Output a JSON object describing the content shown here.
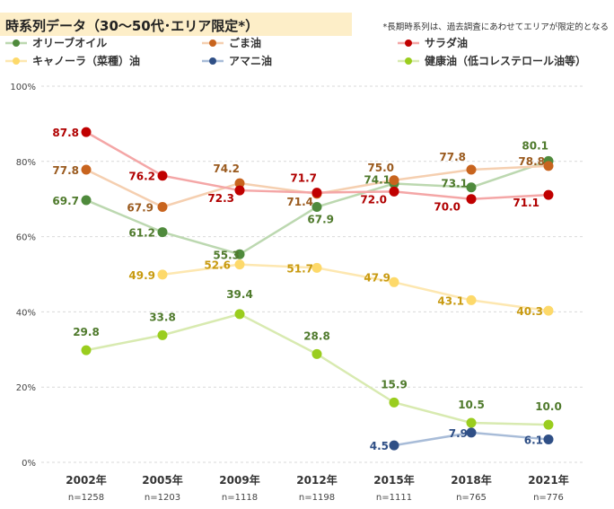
{
  "header": {
    "title": "時系列データ（30～50代･エリア限定*）",
    "note": "*長期時系列は、過去調査にあわせてエリアが限定的となる"
  },
  "chart_data": {
    "type": "line",
    "categories": [
      "2002年",
      "2005年",
      "2009年",
      "2012年",
      "2015年",
      "2018年",
      "2021年"
    ],
    "sample_sizes": [
      "n=1258",
      "n=1203",
      "n=1118",
      "n=1198",
      "n=1111",
      "n=765",
      "n=776"
    ],
    "y_ticks": [
      "0%",
      "20%",
      "40%",
      "60%",
      "80%",
      "100%"
    ],
    "ylim": [
      0,
      100
    ],
    "grid": true,
    "legend_position": "top",
    "series": [
      {
        "name": "オリーブオイル",
        "color": "#4f8a3c",
        "line_color": "#bcd8b0",
        "label_color": "#4f7a2c",
        "values": [
          69.7,
          61.2,
          55.3,
          67.9,
          74.1,
          73.1,
          80.1
        ]
      },
      {
        "name": "ごま油",
        "color": "#c8641e",
        "line_color": "#f5cfb0",
        "label_color": "#9a5a1e",
        "values": [
          77.8,
          67.9,
          74.2,
          71.4,
          75.0,
          77.8,
          78.8
        ]
      },
      {
        "name": "サラダ油",
        "color": "#c00000",
        "line_color": "#f4a6a6",
        "label_color": "#b00000",
        "values": [
          87.8,
          76.2,
          72.3,
          71.7,
          72.0,
          70.0,
          71.1
        ]
      },
      {
        "name": "キャノーラ（菜種）油",
        "color": "#fdd96a",
        "line_color": "#fde7b0",
        "label_color": "#c89a10",
        "values": [
          null,
          49.9,
          52.6,
          51.7,
          47.9,
          43.1,
          40.3
        ]
      },
      {
        "name": "アマニ油",
        "color": "#2f4f86",
        "line_color": "#a8bcd8",
        "label_color": "#2f4f86",
        "values": [
          null,
          null,
          null,
          null,
          4.5,
          7.9,
          6.1
        ]
      },
      {
        "name": "健康油（低コレステロール油等）",
        "color": "#9acd1e",
        "line_color": "#d8eab0",
        "label_color": "#4f7a2c",
        "values": [
          29.8,
          33.8,
          39.4,
          28.8,
          15.9,
          10.5,
          10.0
        ]
      }
    ]
  }
}
